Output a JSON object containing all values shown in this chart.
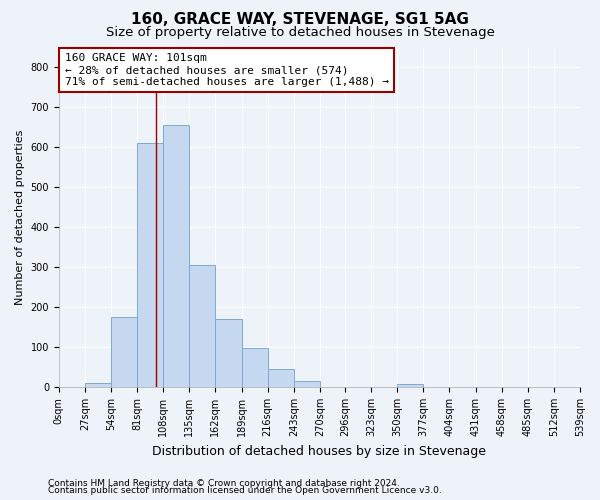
{
  "title": "160, GRACE WAY, STEVENAGE, SG1 5AG",
  "subtitle": "Size of property relative to detached houses in Stevenage",
  "xlabel": "Distribution of detached houses by size in Stevenage",
  "ylabel": "Number of detached properties",
  "bin_edges": [
    0,
    27,
    54,
    81,
    108,
    135,
    162,
    189,
    216,
    243,
    270,
    296,
    323,
    350,
    377,
    404,
    431,
    458,
    485,
    512,
    539
  ],
  "bar_values": [
    0,
    10,
    175,
    610,
    655,
    305,
    170,
    97,
    45,
    15,
    0,
    0,
    0,
    8,
    0,
    0,
    0,
    0,
    0,
    0
  ],
  "bar_color": "#c5d8f0",
  "bar_edge_color": "#7aaad4",
  "property_line_x": 101,
  "property_line_color": "#990000",
  "annotation_line1": "160 GRACE WAY: 101sqm",
  "annotation_line2": "← 28% of detached houses are smaller (574)",
  "annotation_line3": "71% of semi-detached houses are larger (1,488) →",
  "annotation_box_color": "#ffffff",
  "annotation_box_edge_color": "#990000",
  "ylim": [
    0,
    850
  ],
  "yticks": [
    0,
    100,
    200,
    300,
    400,
    500,
    600,
    700,
    800
  ],
  "background_color": "#eef2f9",
  "grid_color": "#ffffff",
  "footer_line1": "Contains HM Land Registry data © Crown copyright and database right 2024.",
  "footer_line2": "Contains public sector information licensed under the Open Government Licence v3.0.",
  "title_fontsize": 11,
  "subtitle_fontsize": 9.5,
  "tick_label_fontsize": 7,
  "ylabel_fontsize": 8,
  "xlabel_fontsize": 9,
  "annotation_fontsize": 8,
  "footer_fontsize": 6.5
}
